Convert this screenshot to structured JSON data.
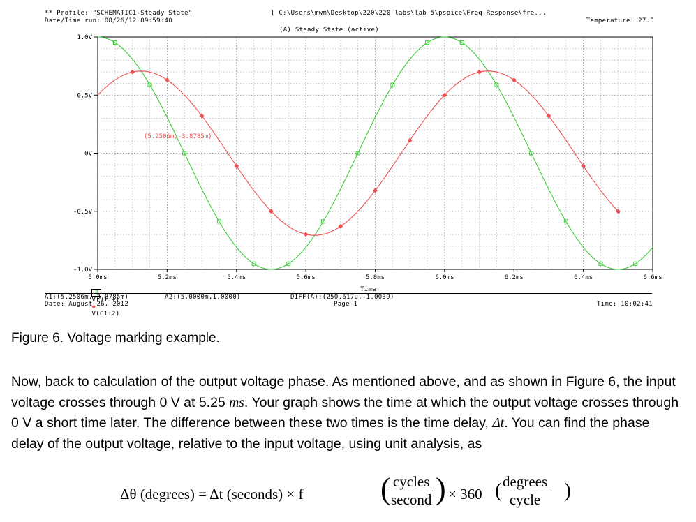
{
  "header": {
    "line1_left": "** Profile: \"SCHEMATIC1-Steady State\"",
    "line1_right": "[ C:\\Users\\mwm\\Desktop\\220\\220 labs\\lab 5\\pspice\\Freq Response\\fre...",
    "line2_left": "Date/Time run: 08/26/12 09:59:40",
    "line2_right": "Temperature: 27.0",
    "line3_center": "(A) Steady State (active)"
  },
  "chart_data": {
    "type": "line",
    "xlabel": "Time",
    "x_ticks": [
      "5.0ms",
      "5.2ms",
      "5.4ms",
      "5.6ms",
      "5.8ms",
      "6.0ms",
      "6.2ms",
      "6.4ms",
      "6.6ms"
    ],
    "x_tick_values": [
      5.0,
      5.2,
      5.4,
      5.6,
      5.8,
      6.0,
      6.2,
      6.4,
      6.6
    ],
    "y_ticks": [
      "1.0V",
      "0.5V",
      "0V",
      "-0.5V",
      "-1.0V"
    ],
    "y_tick_values": [
      1.0,
      0.5,
      0.0,
      -0.5,
      -1.0
    ],
    "xlim_ms": [
      5.0,
      6.6
    ],
    "ylim_v": [
      -1.0,
      1.0
    ],
    "grid": true,
    "series": [
      {
        "name": "V(V1:+)",
        "color": "#3ccc3c",
        "marker": "square",
        "amplitude": 1.0,
        "frequency_hz": 1000,
        "zero_cross_rising_ms": 5.75,
        "x_end_ms": 6.6
      },
      {
        "name": "V(C1:2)",
        "color": "#f05050",
        "marker": "diamond",
        "amplitude": 0.707,
        "frequency_hz": 1000,
        "zero_cross_rising_ms": 5.875,
        "x_end_ms": 6.505
      }
    ],
    "annotation": "(5.2506m,-3.8785m)"
  },
  "legend": {
    "marker_label": "8",
    "series1": "V(V1:+)",
    "series2": "V(C1:2)"
  },
  "footer": {
    "a1": "A1:(5.2506m,-3.8785m)",
    "a2": "A2:(5.0000m,1.0000)",
    "diff": "DIFF(A):(250.617u,-1.0039)",
    "time_label": "Time",
    "page": "Page 1",
    "date": "Date: August 26, 2012",
    "time": "Time: 10:02:41"
  },
  "caption": "Figure 6. Voltage marking example.",
  "paragraph": {
    "p1": "Now, back to calculation of the output voltage phase. As mentioned above, and as shown in Figure 6, the input voltage crosses through 0 V at 5.25 ",
    "unit_ms": "ms",
    "p2": ". Your graph shows the time at which the output voltage crosses through 0 V a short time later. The difference between these two times is the time delay, ",
    "delta_t": "Δt",
    "p3": ". You can find the phase delay of the output voltage, relative to the input voltage, using unit analysis, as"
  },
  "equation": {
    "lhs": "Δθ (degrees) = Δt (seconds) × f",
    "frac1_num": "cycles",
    "frac1_den": "second",
    "times360": "× 360",
    "frac2_num": "degrees",
    "frac2_den": "cycle"
  }
}
